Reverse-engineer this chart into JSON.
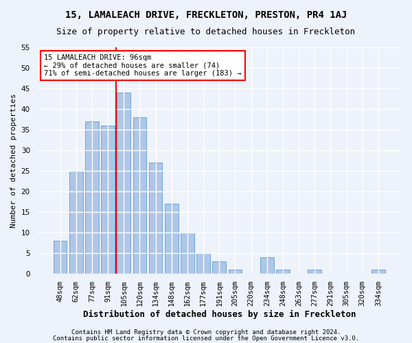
{
  "title": "15, LAMALEACH DRIVE, FRECKLETON, PRESTON, PR4 1AJ",
  "subtitle": "Size of property relative to detached houses in Freckleton",
  "xlabel": "Distribution of detached houses by size in Freckleton",
  "ylabel": "Number of detached properties",
  "categories": [
    "48sqm",
    "62sqm",
    "77sqm",
    "91sqm",
    "105sqm",
    "120sqm",
    "134sqm",
    "148sqm",
    "162sqm",
    "177sqm",
    "191sqm",
    "205sqm",
    "220sqm",
    "234sqm",
    "248sqm",
    "263sqm",
    "277sqm",
    "291sqm",
    "305sqm",
    "320sqm",
    "334sqm"
  ],
  "values": [
    8,
    25,
    37,
    36,
    44,
    38,
    27,
    17,
    10,
    5,
    3,
    1,
    0,
    4,
    1,
    0,
    1,
    0,
    0,
    0,
    1
  ],
  "bar_color": "#aec6e8",
  "bar_edge_color": "#5b9bd5",
  "vline_color": "red",
  "vline_x": 3.5,
  "annotation_line1": "15 LAMALEACH DRIVE: 96sqm",
  "annotation_line2": "← 29% of detached houses are smaller (74)",
  "annotation_line3": "71% of semi-detached houses are larger (183) →",
  "ylim": [
    0,
    55
  ],
  "yticks": [
    0,
    5,
    10,
    15,
    20,
    25,
    30,
    35,
    40,
    45,
    50,
    55
  ],
  "footer1": "Contains HM Land Registry data © Crown copyright and database right 2024.",
  "footer2": "Contains public sector information licensed under the Open Government Licence v3.0.",
  "bg_color": "#eef2fb",
  "grid_color": "#ffffff",
  "title_fontsize": 10,
  "subtitle_fontsize": 9,
  "ylabel_fontsize": 8,
  "xlabel_fontsize": 9,
  "tick_fontsize": 7.5,
  "annot_fontsize": 7.5,
  "footer_fontsize": 6.5
}
